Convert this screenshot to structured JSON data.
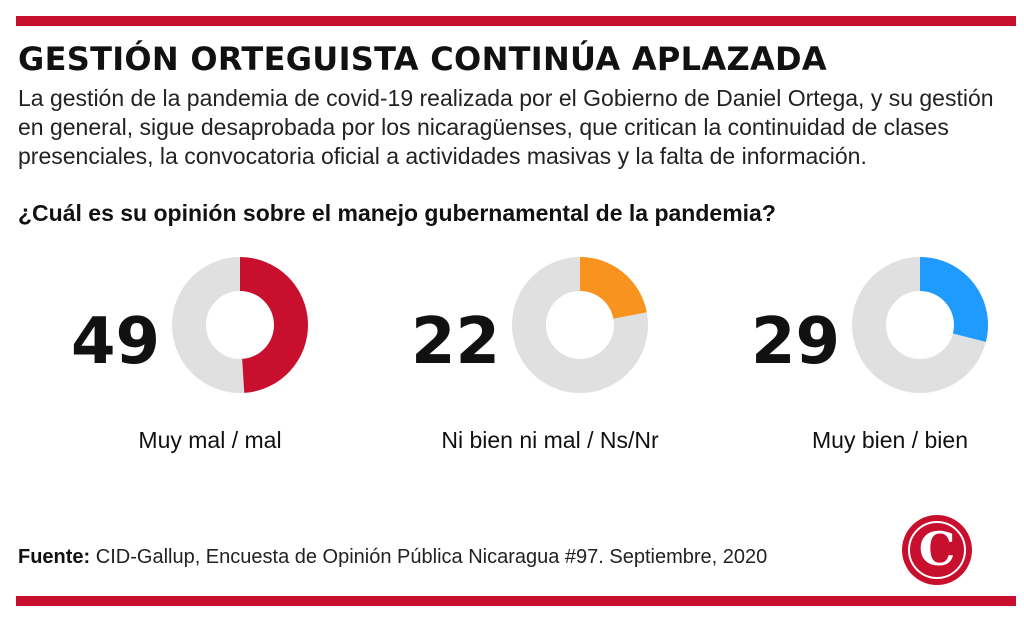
{
  "title": "GESTIÓN ORTEGUISTA CONTINÚA APLAZADA",
  "lede": "La gestión de la pandemia de covid-19 realizada por el Gobierno de Daniel Ortega, y su gestión en general, sigue desaprobada por los nicaragüenses, que critican la continuidad de clases presenciales, la convocatoria oficial a actividades masivas y la falta de información.",
  "question": "¿Cuál es su opinión sobre el manejo gubernamental de la pandemia?",
  "source": {
    "label": "Fuente:",
    "text": "CID-Gallup, Encuesta de Opinión Pública Nicaragua #97. Septiembre, 2020"
  },
  "logo": {
    "letter": "C",
    "color": "#c8102e"
  },
  "colors": {
    "rule": "#c8102e",
    "track": "#e0e0e0"
  },
  "chart_data": {
    "type": "pie",
    "title": "¿Cuál es su opinión sobre el manejo gubernamental de la pandemia?",
    "unit": "%",
    "max": 100,
    "series": [
      {
        "value": 49,
        "label": "Muy mal / mal",
        "color": "#c8102e"
      },
      {
        "value": 22,
        "label": "Ni bien ni mal / Ns/Nr",
        "color": "#f7931e"
      },
      {
        "value": 29,
        "label": "Muy bien / bien",
        "color": "#1f9bff"
      }
    ]
  }
}
